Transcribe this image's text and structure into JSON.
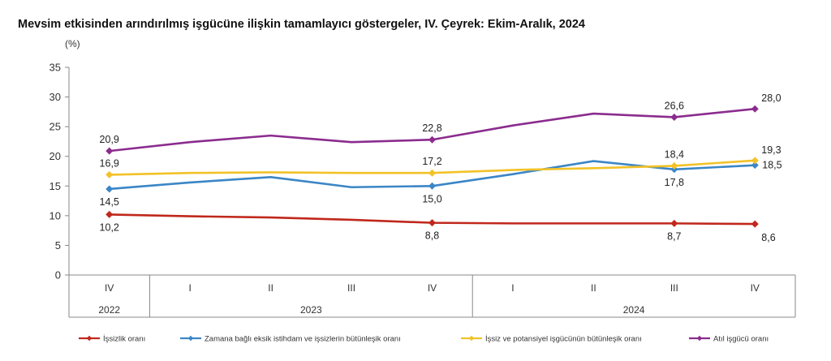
{
  "chart_data": {
    "type": "line",
    "title": "Mevsim etkisinden arındırılmış işgücüne ilişkin tamamlayıcı göstergeler, IV. Çeyrek: Ekim-Aralık, 2024",
    "unit_label": "(%)",
    "ylim": [
      0,
      35
    ],
    "yticks": [
      "0",
      "5",
      "10",
      "15",
      "20",
      "25",
      "30",
      "35"
    ],
    "categories": [
      "IV",
      "I",
      "II",
      "III",
      "IV",
      "I",
      "II",
      "III",
      "IV"
    ],
    "year_groups": [
      {
        "label": "2022",
        "span": 1
      },
      {
        "label": "2023",
        "span": 4
      },
      {
        "label": "2024",
        "span": 4
      }
    ],
    "grid": false,
    "legend_position": "bottom",
    "series": [
      {
        "name": "İşsizlik oranı",
        "color": "#c0281c",
        "values": [
          10.2,
          9.9,
          9.7,
          9.3,
          8.8,
          8.7,
          8.7,
          8.7,
          8.6
        ],
        "labels": [
          "10,2",
          "",
          "",
          "",
          "8,8",
          "",
          "",
          "8,7",
          "8,6"
        ],
        "label_pos": [
          "below",
          "",
          "",
          "",
          "below",
          "",
          "",
          "below",
          "below-right"
        ]
      },
      {
        "name": "Zamana bağlı eksik istihdam ve işsizlerin bütünleşik oranı",
        "color": "#3b86c6",
        "values": [
          14.5,
          15.6,
          16.5,
          14.8,
          15.0,
          17.0,
          19.2,
          17.8,
          18.5
        ],
        "labels": [
          "14,5",
          "",
          "",
          "",
          "15,0",
          "",
          "",
          "17,8",
          "18,5"
        ],
        "label_pos": [
          "below",
          "",
          "",
          "",
          "below",
          "",
          "",
          "below",
          "right"
        ]
      },
      {
        "name": "İşsiz ve potansiyel işgücünün bütünleşik oranı",
        "color": "#f2c227",
        "values": [
          16.9,
          17.2,
          17.3,
          17.2,
          17.2,
          17.7,
          18.0,
          18.4,
          19.3
        ],
        "labels": [
          "16,9",
          "",
          "",
          "",
          "17,2",
          "",
          "",
          "18,4",
          "19,3"
        ],
        "label_pos": [
          "above",
          "",
          "",
          "",
          "above",
          "",
          "",
          "above",
          "above-right"
        ]
      },
      {
        "name": "Atıl işgücü oranı",
        "color": "#8b2c8e",
        "values": [
          20.9,
          22.4,
          23.5,
          22.4,
          22.8,
          25.2,
          27.2,
          26.6,
          28.0
        ],
        "labels": [
          "20,9",
          "",
          "",
          "",
          "22,8",
          "",
          "",
          "26,6",
          "28,0"
        ],
        "label_pos": [
          "above",
          "",
          "",
          "",
          "above",
          "",
          "",
          "above",
          "above-right"
        ]
      }
    ]
  }
}
